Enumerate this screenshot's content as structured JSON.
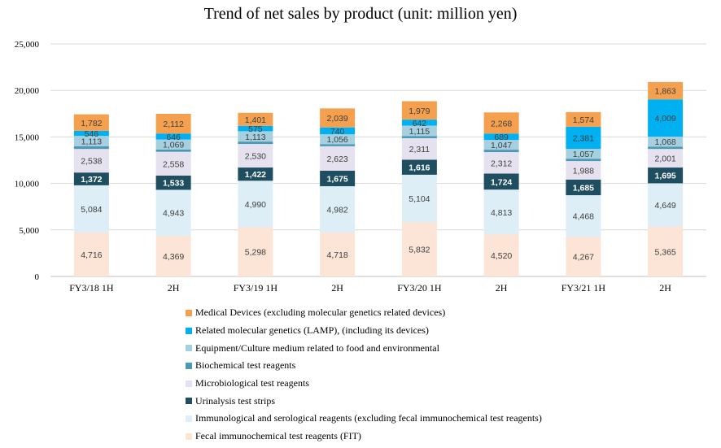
{
  "chart_data": {
    "type": "bar",
    "stacked": true,
    "title": "Trend of net sales by product (unit: million yen)",
    "xlabel": "",
    "ylabel": "",
    "ylim": [
      0,
      25000
    ],
    "yticks": [
      "0",
      "5,000",
      "10,000",
      "15,000",
      "20,000",
      "25,000"
    ],
    "grid": true,
    "legend_position": "bottom",
    "categories": [
      "FY3/18 1H",
      "2H",
      "FY3/19 1H",
      "2H",
      "FY3/20 1H",
      "2H",
      "FY3/21 1H",
      "2H"
    ],
    "series": [
      {
        "name": "Fecal immunochemical test reagents (FIT)",
        "color": "#FCE4D6",
        "label_color": "#404040",
        "bold": false,
        "values": [
          4716,
          4369,
          5298,
          4718,
          5832,
          4520,
          4267,
          5365
        ],
        "labels": [
          "4,716",
          "4,369",
          "5,298",
          "4,718",
          "5,832",
          "4,520",
          "4,267",
          "5,365"
        ]
      },
      {
        "name": "Immunological and serological reagents (excluding fecal immunochemical test reagents)",
        "color": "#DDEEF6",
        "label_color": "#404040",
        "bold": false,
        "values": [
          5084,
          4943,
          4990,
          4982,
          5104,
          4813,
          4468,
          4649
        ],
        "labels": [
          "5,084",
          "4,943",
          "4,990",
          "4,982",
          "5,104",
          "4,813",
          "4,468",
          "4,649"
        ]
      },
      {
        "name": "Urinalysis test strips",
        "color": "#1F4E60",
        "label_color": "#FFFFFF",
        "bold": true,
        "values": [
          1372,
          1533,
          1422,
          1675,
          1616,
          1724,
          1685,
          1695
        ],
        "labels": [
          "1,372",
          "1,533",
          "1,422",
          "1,675",
          "1,616",
          "1,724",
          "1,685",
          "1,695"
        ]
      },
      {
        "name": "Microbiological test reagents",
        "color": "#E6E1EE",
        "label_color": "#404040",
        "bold": false,
        "values": [
          2538,
          2558,
          2530,
          2623,
          2311,
          2312,
          1988,
          2001
        ],
        "labels": [
          "2,538",
          "2,558",
          "2,530",
          "2,623",
          "2,311",
          "2,312",
          "1,988",
          "2,001"
        ]
      },
      {
        "name": "Biochemical test reagents",
        "color": "#4A9AB5",
        "label_color": "#404040",
        "bold": false,
        "values": [
          280,
          250,
          260,
          230,
          240,
          260,
          250,
          250
        ],
        "labels": []
      },
      {
        "name": "Equipment/Culture medium related to food and environmental",
        "color": "#A6D0E0",
        "label_color": "#404040",
        "bold": false,
        "values": [
          1113,
          1069,
          1113,
          1056,
          1115,
          1047,
          1057,
          1068
        ],
        "labels": [
          "1,113",
          "1,069",
          "1,113",
          "1,056",
          "1,115",
          "1,047",
          "1,057",
          "1,068"
        ]
      },
      {
        "name": "Related molecular genetics (LAMP), (including its devices)",
        "color": "#00B0F0",
        "label_color": "#404040",
        "bold": false,
        "values": [
          546,
          646,
          575,
          740,
          642,
          689,
          2381,
          4009
        ],
        "labels": [
          "546",
          "646",
          "575",
          "740",
          "642",
          "689",
          "2,381",
          "4,009"
        ]
      },
      {
        "name": "Medical Devices (excluding molecular genetics related devices)",
        "color": "#F4A04F",
        "label_color": "#404040",
        "bold": false,
        "values": [
          1782,
          2112,
          1401,
          2039,
          1979,
          2268,
          1574,
          1863
        ],
        "labels": [
          "1,782",
          "2,112",
          "1,401",
          "2,039",
          "1,979",
          "2,268",
          "1,574",
          "1,863"
        ]
      }
    ]
  }
}
